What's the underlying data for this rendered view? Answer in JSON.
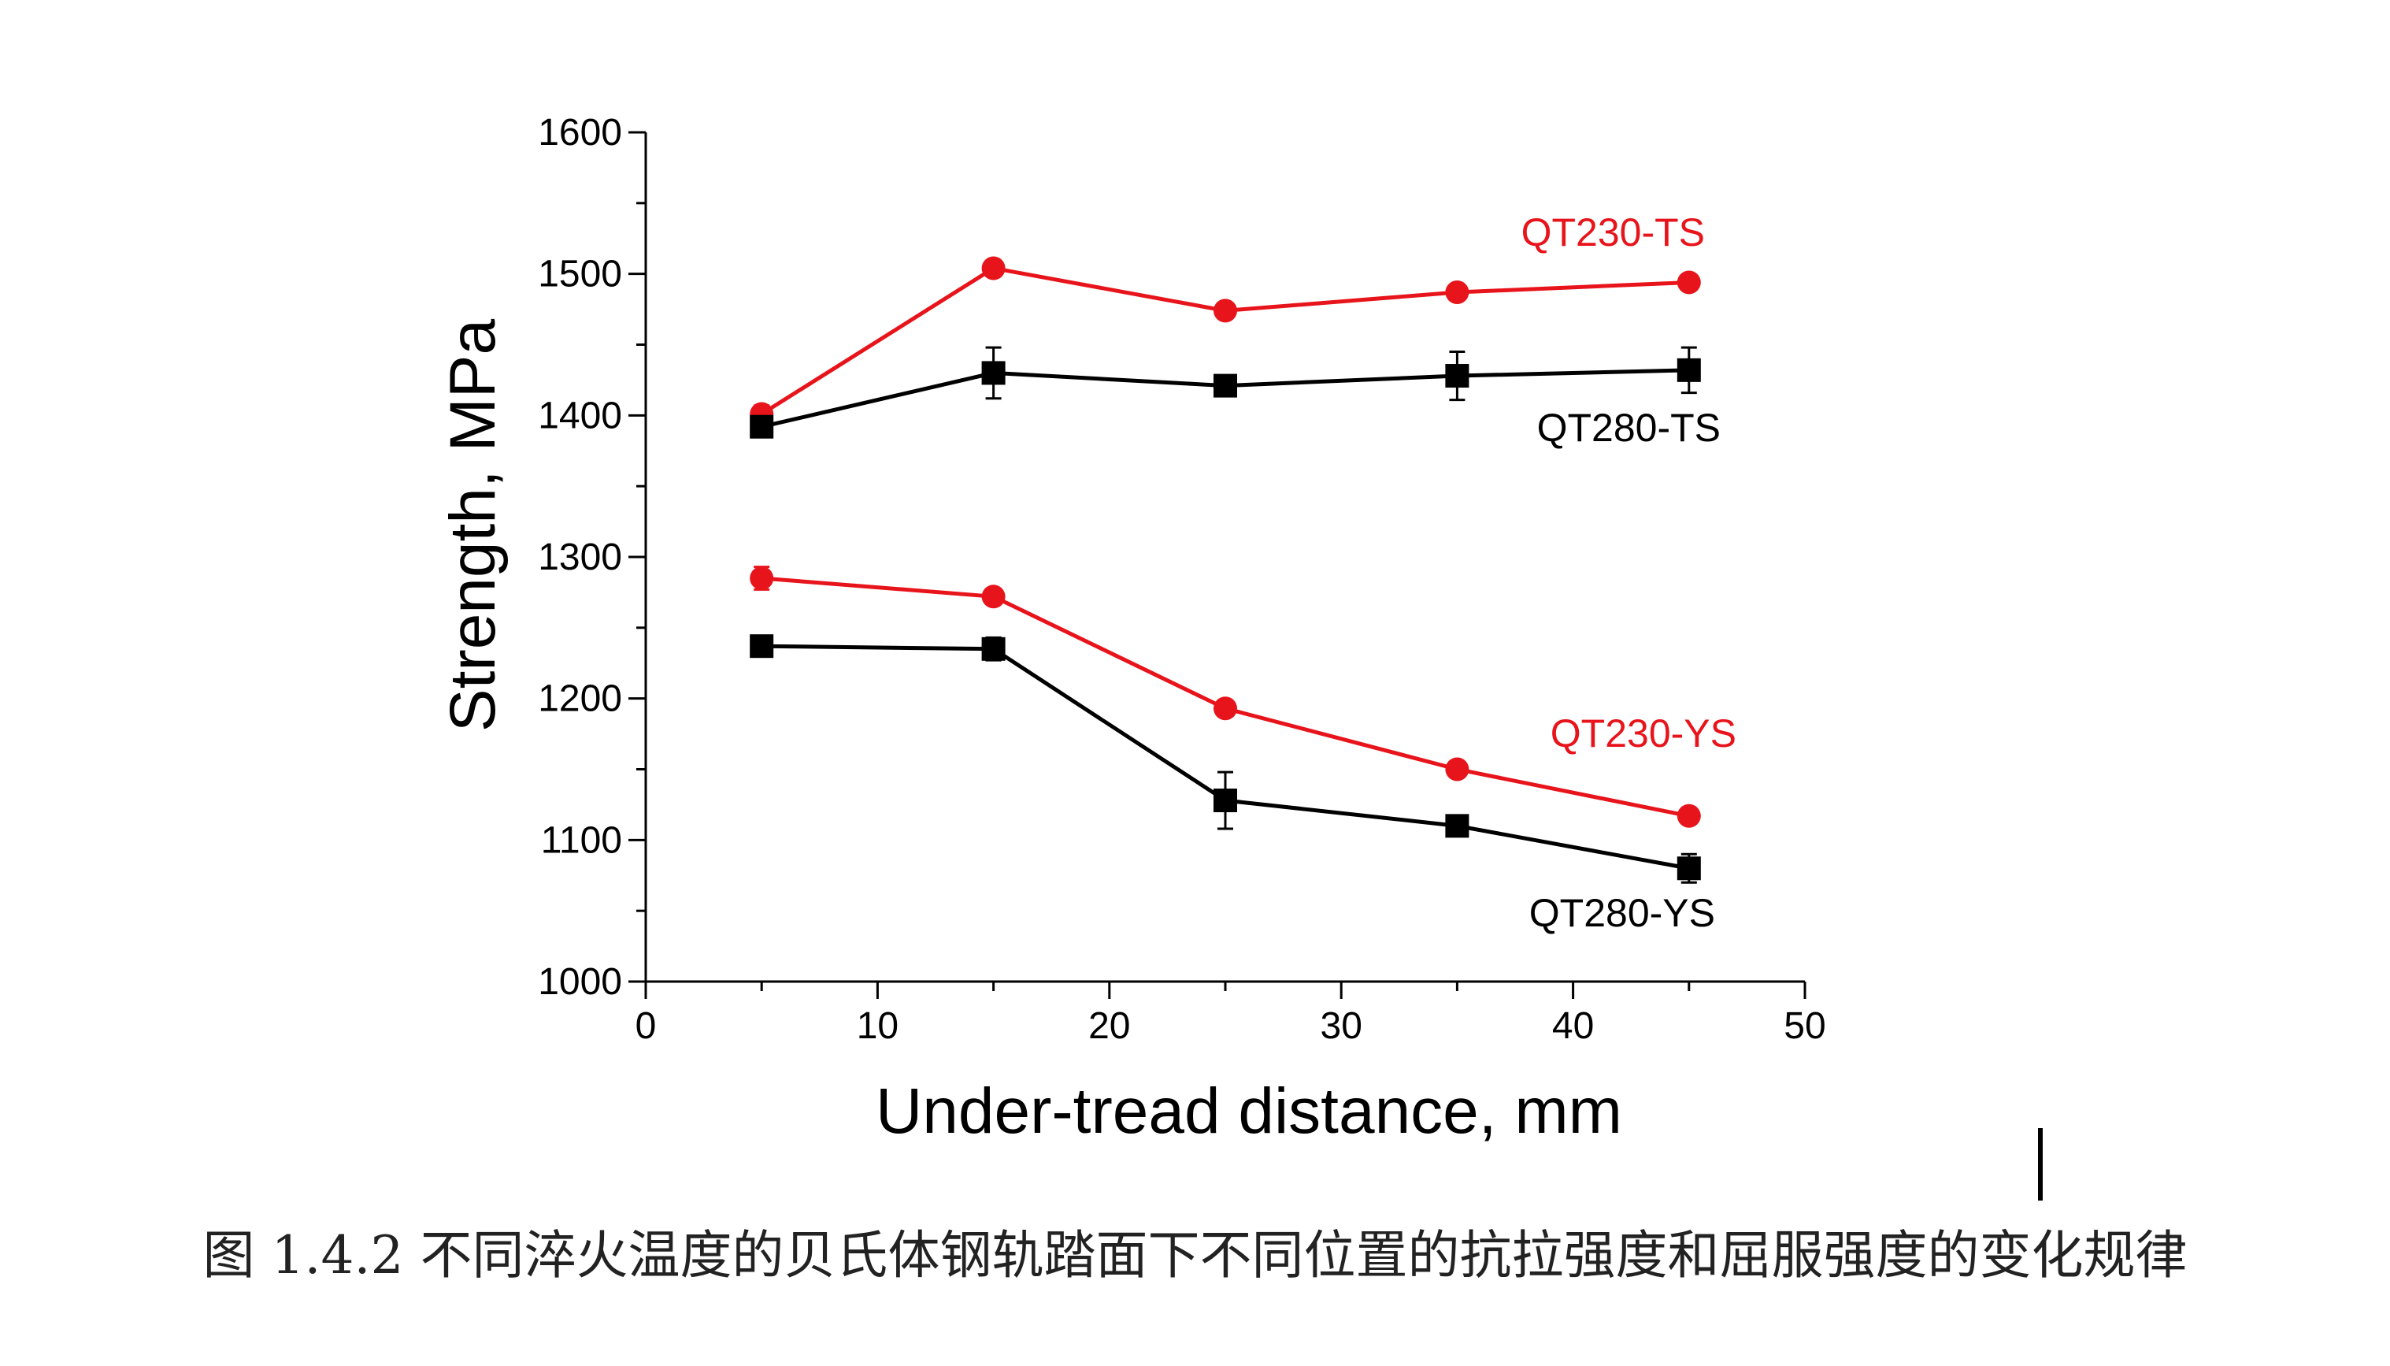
{
  "chart_data": {
    "type": "line",
    "xlabel": "Under-tread distance, mm",
    "ylabel": "Strength, MPa",
    "xlim": [
      0,
      50
    ],
    "ylim": [
      1000,
      1600
    ],
    "xticks": [
      0,
      10,
      20,
      30,
      40,
      50
    ],
    "yticks": [
      1000,
      1100,
      1200,
      1300,
      1400,
      1500,
      1600
    ],
    "grid": false,
    "x": [
      5,
      15,
      25,
      35,
      45
    ],
    "series": [
      {
        "name": "QT230-TS",
        "color": "#e8141b",
        "marker": "circle",
        "values": [
          1401,
          1504,
          1474,
          1487,
          1494
        ],
        "errors": [
          6,
          3,
          3,
          3,
          3
        ]
      },
      {
        "name": "QT280-TS",
        "color": "#000000",
        "marker": "square",
        "values": [
          1392,
          1430,
          1421,
          1428,
          1432
        ],
        "errors": [
          3,
          18,
          3,
          17,
          16
        ]
      },
      {
        "name": "QT230-YS",
        "color": "#e8141b",
        "marker": "circle",
        "values": [
          1285,
          1272,
          1193,
          1150,
          1117
        ],
        "errors": [
          8,
          3,
          3,
          3,
          3
        ]
      },
      {
        "name": "QT280-YS",
        "color": "#000000",
        "marker": "square",
        "values": [
          1237,
          1235,
          1128,
          1110,
          1080
        ],
        "errors": [
          3,
          8,
          20,
          3,
          10
        ]
      }
    ]
  },
  "caption": "图 1.4.2 不同淬火温度的贝氏体钢轨踏面下不同位置的抗拉强度和屈服强度的变化规律"
}
